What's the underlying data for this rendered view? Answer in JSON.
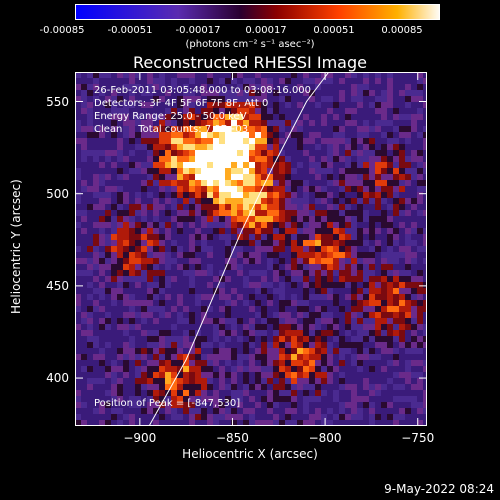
{
  "colorbar": {
    "colors": [
      "#0000ff",
      "#5a2bb0",
      "#2a0030",
      "#8b0000",
      "#ff4000",
      "#ffb000",
      "#ffffff"
    ],
    "tick_labels": [
      "-0.00085",
      "-0.00051",
      "-0.00017",
      "0.00017",
      "0.00051",
      "0.00085"
    ],
    "unit_label": "(photons cm⁻² s⁻¹ asec⁻²)"
  },
  "chart_data": {
    "type": "heatmap",
    "title": "Reconstructed RHESSI Image",
    "xlabel": "Heliocentric X (arcsec)",
    "ylabel": "Heliocentric Y (arcsec)",
    "xlim": [
      -935,
      -745
    ],
    "ylim": [
      374,
      566
    ],
    "x_ticks": [
      -900,
      -850,
      -800,
      -750
    ],
    "x_tick_labels": [
      "−900",
      "−850",
      "−800",
      "−750"
    ],
    "y_ticks": [
      400,
      450,
      500,
      550
    ],
    "y_tick_labels": [
      "400",
      "450",
      "500",
      "550"
    ],
    "peak_position": [
      -847,
      530
    ],
    "limb_curve": [
      [
        -895,
        374
      ],
      [
        -875,
        410
      ],
      [
        -860,
        445
      ],
      [
        -845,
        480
      ],
      [
        -828,
        515
      ],
      [
        -810,
        550
      ],
      [
        -798,
        566
      ]
    ],
    "hot_regions": [
      {
        "x": -846,
        "y": 530,
        "intensity": 1.0
      },
      {
        "x": -838,
        "y": 495,
        "intensity": 0.85
      },
      {
        "x": -862,
        "y": 510,
        "intensity": 0.7
      },
      {
        "x": -878,
        "y": 525,
        "intensity": 0.6
      },
      {
        "x": -905,
        "y": 470,
        "intensity": 0.55
      },
      {
        "x": -800,
        "y": 470,
        "intensity": 0.6
      },
      {
        "x": -765,
        "y": 440,
        "intensity": 0.55
      },
      {
        "x": -815,
        "y": 410,
        "intensity": 0.6
      },
      {
        "x": -880,
        "y": 400,
        "intensity": 0.6
      },
      {
        "x": -770,
        "y": 510,
        "intensity": 0.45
      }
    ],
    "annotations": [
      "26-Feb-2011 03:05:48.000 to 03:08:16.000",
      "Detectors: 3F 4F 5F 6F 7F 8F, Att 0",
      "Energy Range: 25.0 - 50.0 keV",
      "Clean     Total counts: 7.9E+03"
    ],
    "peak_label": "Position of Peak = [-847,530]"
  },
  "datestamp": "9-May-2022 08:24"
}
